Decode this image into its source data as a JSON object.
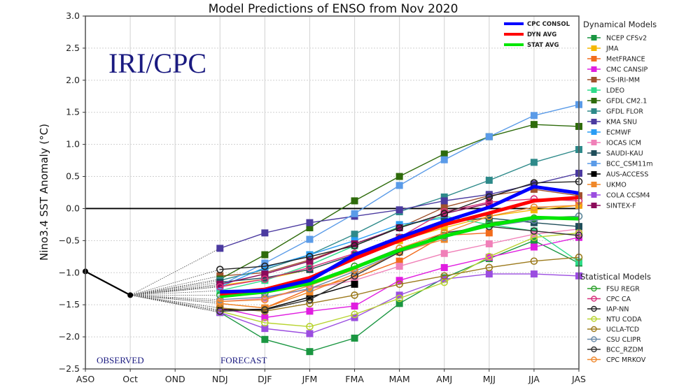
{
  "chart_data": {
    "type": "line",
    "title": "Model Predictions of ENSO from Nov 2020",
    "xlabel": "",
    "ylabel": "Nino3.4 SST Anomaly (°C)",
    "ylim": [
      -2.5,
      3.0
    ],
    "yticks": [
      "3.0",
      "2.5",
      "2.0",
      "1.5",
      "1.0",
      "0.5",
      "0.0",
      "−0.5",
      "−1.0",
      "−1.5",
      "−2.0",
      "−2.5"
    ],
    "ytick_values": [
      3.0,
      2.5,
      2.0,
      1.5,
      1.0,
      0.5,
      0.0,
      -0.5,
      -1.0,
      -1.5,
      -2.0,
      -2.5
    ],
    "categories": [
      "ASO",
      "Oct",
      "OND",
      "NDJ",
      "DJF",
      "JFM",
      "FMA",
      "MAM",
      "AMJ",
      "MJJ",
      "JJA",
      "JAS"
    ],
    "grid": true,
    "zero_line": true,
    "watermark": "IRI/CPC",
    "annotations": {
      "observed": "OBSERVED",
      "forecast": "FORECAST"
    },
    "observed": {
      "name": "Observed",
      "color": "#000000",
      "values": [
        -0.98,
        -1.35
      ]
    },
    "forecast_start_index": 3,
    "averages": [
      {
        "name": "CPC CONSOL",
        "color": "#0000ff",
        "values": [
          -1.3,
          -1.28,
          -1.12,
          -0.72,
          -0.45,
          -0.2,
          0.02,
          0.34,
          0.24
        ]
      },
      {
        "name": "DYN AVG",
        "color": "#ff0000",
        "values": [
          -1.33,
          -1.26,
          -1.08,
          -0.78,
          -0.5,
          -0.25,
          -0.07,
          0.12,
          0.17
        ]
      },
      {
        "name": "STAT AVG",
        "color": "#00e600",
        "values": [
          -1.37,
          -1.3,
          -1.17,
          -0.92,
          -0.65,
          -0.43,
          -0.26,
          -0.14,
          -0.16
        ]
      }
    ],
    "legend_averages_placement": "top-right inside plot",
    "dynamical_heading": "Dynamical Models",
    "statistical_heading": "Statistical Models",
    "legend_placement": "right",
    "dynamical_models": [
      {
        "name": "NCEP CFSv2",
        "color": "#1a9641",
        "values": [
          -1.62,
          -2.04,
          -2.23,
          -2.02,
          -1.48,
          -1.08,
          -0.78,
          -0.5,
          -0.85
        ]
      },
      {
        "name": "JMA",
        "color": "#f5b800",
        "values": [
          -1.2,
          -1.1,
          -0.95,
          -0.72,
          -0.5,
          -0.3,
          -0.12,
          -0.02,
          0.05
        ]
      },
      {
        "name": "MetFRANCE",
        "color": "#f26c1c",
        "values": [
          -1.48,
          -1.55,
          -1.25,
          -1.08,
          -0.82,
          -0.42,
          -0.38,
          null,
          null
        ]
      },
      {
        "name": "CMC CANSIP",
        "color": "#e01ee0",
        "values": [
          -1.55,
          -1.7,
          -1.6,
          -1.52,
          -1.12,
          -0.92,
          -0.76,
          -0.6,
          -0.45
        ]
      },
      {
        "name": "CS-IRI-MM",
        "color": "#a0522d",
        "values": [
          -1.05,
          -1.0,
          -0.8,
          -0.55,
          -0.3,
          0.02,
          0.2,
          0.3,
          0.2
        ]
      },
      {
        "name": "LDEO",
        "color": "#2edc8a",
        "values": [
          -1.28,
          -1.12,
          -0.88,
          -0.58,
          -0.28,
          -0.12,
          -0.25,
          -0.35,
          -0.83
        ]
      },
      {
        "name": "GFDL CM2.1",
        "color": "#2e6b0b",
        "values": [
          -1.1,
          -0.72,
          -0.3,
          0.12,
          0.5,
          0.85,
          1.12,
          1.31,
          1.28
        ]
      },
      {
        "name": "GFDL FLOR",
        "color": "#2e8a8a",
        "values": [
          -1.12,
          -0.95,
          -0.72,
          -0.4,
          -0.05,
          0.18,
          0.44,
          0.72,
          0.92
        ]
      },
      {
        "name": "KMA SNU",
        "color": "#4b3aa0",
        "values": [
          -0.62,
          -0.38,
          -0.22,
          -0.12,
          -0.02,
          0.12,
          0.22,
          0.38,
          0.55
        ]
      },
      {
        "name": "ECMWF",
        "color": "#2a9df4",
        "values": [
          -1.22,
          -0.92,
          -0.72,
          -0.5,
          -0.25,
          -0.15,
          null,
          null,
          null
        ]
      },
      {
        "name": "IOCAS ICM",
        "color": "#f080b8",
        "values": [
          -1.45,
          -1.4,
          -1.25,
          -1.12,
          -0.9,
          -0.7,
          -0.55,
          -0.4,
          -0.32
        ]
      },
      {
        "name": "SAUDI-KAU",
        "color": "#1f4e5a",
        "values": [
          -1.15,
          -1.08,
          -0.95,
          -0.72,
          -0.45,
          -0.2,
          -0.15,
          -0.22,
          -0.28
        ]
      },
      {
        "name": "BCC_CSM11m",
        "color": "#5a9be8",
        "values": [
          -1.2,
          -0.85,
          -0.48,
          -0.08,
          0.36,
          0.76,
          1.12,
          1.45,
          1.62
        ]
      },
      {
        "name": "AUS-ACCESS",
        "color": "#000000",
        "values": [
          -1.58,
          -1.57,
          -1.38,
          -1.18,
          null,
          null,
          null,
          null,
          null
        ]
      },
      {
        "name": "UKMO",
        "color": "#f0882a",
        "values": [
          -1.48,
          -1.55,
          -1.3,
          -1.02,
          -0.68,
          -0.48,
          null,
          null,
          null
        ]
      },
      {
        "name": "COLA CCSM4",
        "color": "#9b4de0",
        "values": [
          -1.62,
          -1.87,
          -1.95,
          -1.7,
          -1.35,
          -1.1,
          -1.02,
          -1.02,
          -1.05
        ]
      },
      {
        "name": "SINTEX-F",
        "color": "#8b0a5a",
        "values": [
          -1.18,
          -1.02,
          -0.82,
          -0.55,
          -0.3,
          -0.08,
          0.08,
          null,
          null
        ]
      }
    ],
    "statistical_models": [
      {
        "name": "FSU REGR",
        "color": "#2ca02c",
        "values": [
          -1.35,
          -1.32,
          -1.15,
          -0.9,
          -0.62,
          -0.42,
          -0.22,
          -0.15,
          -0.12
        ]
      },
      {
        "name": "CPC CA",
        "color": "#d6307a",
        "values": [
          -1.22,
          -1.1,
          -0.92,
          -0.7,
          -0.45,
          -0.05,
          0.1,
          0.15,
          0.12
        ]
      },
      {
        "name": "IAP-NN",
        "color": "#222222",
        "values": [
          -0.95,
          -0.9,
          -0.75,
          -0.58,
          -0.3,
          -0.08,
          0.18,
          0.4,
          0.42
        ]
      },
      {
        "name": "NTU CODA",
        "color": "#b8d430",
        "values": [
          -1.6,
          -1.78,
          -1.84,
          -1.65,
          -1.4,
          -1.15,
          -0.75,
          -0.45,
          -0.38
        ]
      },
      {
        "name": "UCLA-TCD",
        "color": "#9c7a1c",
        "values": [
          -1.55,
          -1.6,
          -1.48,
          -1.35,
          -1.18,
          -1.05,
          -0.92,
          -0.82,
          -0.76
        ]
      },
      {
        "name": "CSU CLIPR",
        "color": "#6a8aa8",
        "values": [
          -1.42,
          -1.38,
          -1.25,
          -0.98,
          -0.68,
          -0.45,
          -0.28,
          -0.18,
          -0.12
        ]
      },
      {
        "name": "BCC_RZDM",
        "color": "#333333",
        "values": [
          -1.6,
          -1.58,
          -1.42,
          -1.05,
          -0.68,
          -0.38,
          -0.28,
          -0.35,
          -0.42
        ]
      },
      {
        "name": "CPC MRKOV",
        "color": "#f08a30",
        "values": [
          -1.45,
          -1.42,
          -1.2,
          -0.95,
          -0.62,
          -0.38,
          -0.12,
          0.02,
          0.05
        ]
      }
    ]
  }
}
